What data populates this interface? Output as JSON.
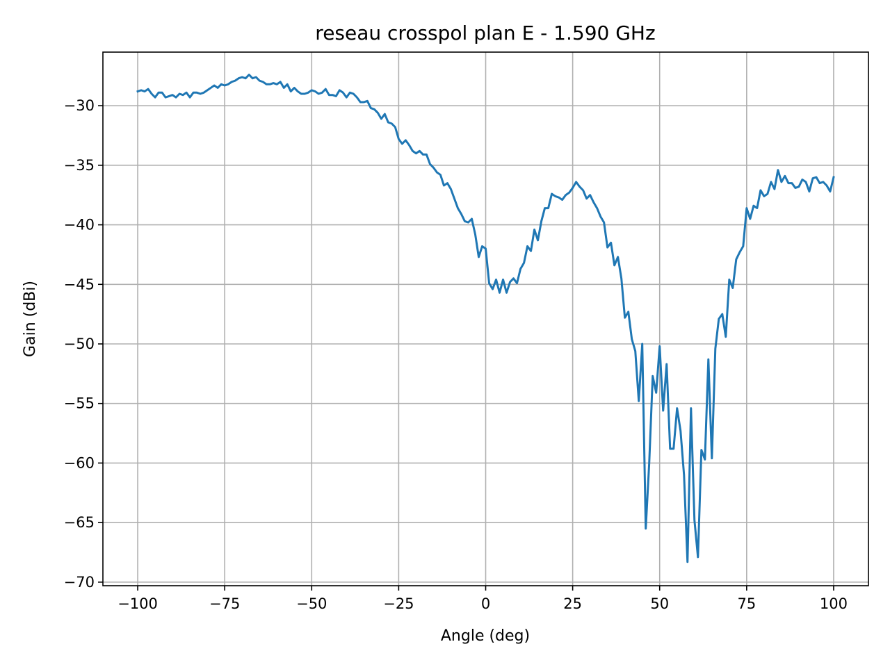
{
  "chart_data": {
    "type": "line",
    "title": "reseau crosspol plan E - 1.590 GHz",
    "xlabel": "Angle (deg)",
    "ylabel": "Gain (dBi)",
    "xlim": [
      -110,
      110
    ],
    "ylim": [
      -70.3,
      -25.5
    ],
    "xticks": [
      -100,
      -75,
      -50,
      -25,
      0,
      25,
      50,
      75,
      100
    ],
    "yticks": [
      -70,
      -65,
      -60,
      -55,
      -50,
      -45,
      -40,
      -35,
      -30
    ],
    "xtick_labels": [
      "−100",
      "−75",
      "−50",
      "−25",
      "0",
      "25",
      "50",
      "75",
      "100"
    ],
    "ytick_labels": [
      "−70",
      "−65",
      "−60",
      "−55",
      "−50",
      "−45",
      "−40",
      "−35",
      "−30"
    ],
    "grid": true,
    "line_color": "#1f77b4",
    "series": [
      {
        "x": [
          -100,
          -99,
          -98,
          -97,
          -96,
          -95,
          -94,
          -93,
          -92,
          -91,
          -90,
          -89,
          -88,
          -87,
          -86,
          -85,
          -84,
          -83,
          -82,
          -81,
          -80,
          -79,
          -78,
          -77,
          -76,
          -75,
          -74,
          -73,
          -72,
          -71,
          -70,
          -69,
          -68,
          -67,
          -66,
          -65,
          -64,
          -63,
          -62,
          -61,
          -60,
          -59,
          -58,
          -57,
          -56,
          -55,
          -54,
          -53,
          -52,
          -51,
          -50,
          -49,
          -48,
          -47,
          -46,
          -45,
          -44,
          -43,
          -42,
          -41,
          -40,
          -39,
          -38,
          -37,
          -36,
          -35,
          -34,
          -33,
          -32,
          -31,
          -30,
          -29,
          -28,
          -27,
          -26,
          -25,
          -24,
          -23,
          -22,
          -21,
          -20,
          -19,
          -18,
          -17,
          -16,
          -15,
          -14,
          -13,
          -12,
          -11,
          -10,
          -9,
          -8,
          -7,
          -6,
          -5,
          -4,
          -3,
          -2,
          -1,
          0,
          1,
          2,
          3,
          4,
          5,
          6,
          7,
          8,
          9,
          10,
          11,
          12,
          13,
          14,
          15,
          16,
          17,
          18,
          19,
          20,
          21,
          22,
          23,
          24,
          25,
          26,
          27,
          28,
          29,
          30,
          31,
          32,
          33,
          34,
          35,
          36,
          37,
          38,
          39,
          40,
          41,
          42,
          43,
          44,
          45,
          46,
          47,
          48,
          49,
          50,
          51,
          52,
          53,
          54,
          55,
          56,
          57,
          58,
          59,
          60,
          61,
          62,
          63,
          64,
          65,
          66,
          67,
          68,
          69,
          70,
          71,
          72,
          73,
          74,
          75,
          76,
          77,
          78,
          79,
          80,
          81,
          82,
          83,
          84,
          85,
          86,
          87,
          88,
          89,
          90,
          91,
          92,
          93,
          94,
          95,
          96,
          97,
          98,
          99,
          100
        ],
        "y": [
          -28.8,
          -28.7,
          -28.8,
          -28.6,
          -29.0,
          -29.3,
          -28.9,
          -28.9,
          -29.3,
          -29.2,
          -29.1,
          -29.3,
          -29.0,
          -29.1,
          -28.9,
          -29.3,
          -28.9,
          -28.9,
          -29.0,
          -28.9,
          -28.7,
          -28.5,
          -28.3,
          -28.5,
          -28.2,
          -28.3,
          -28.2,
          -28.0,
          -27.9,
          -27.7,
          -27.6,
          -27.7,
          -27.4,
          -27.7,
          -27.6,
          -27.9,
          -28.0,
          -28.2,
          -28.2,
          -28.1,
          -28.2,
          -28.0,
          -28.5,
          -28.2,
          -28.8,
          -28.5,
          -28.8,
          -29.0,
          -29.0,
          -28.9,
          -28.7,
          -28.8,
          -29.0,
          -28.9,
          -28.6,
          -29.1,
          -29.1,
          -29.2,
          -28.7,
          -28.9,
          -29.3,
          -28.9,
          -29.0,
          -29.3,
          -29.7,
          -29.7,
          -29.6,
          -30.2,
          -30.3,
          -30.6,
          -31.1,
          -30.7,
          -31.4,
          -31.5,
          -31.8,
          -32.8,
          -33.2,
          -32.9,
          -33.3,
          -33.8,
          -34.0,
          -33.8,
          -34.1,
          -34.1,
          -34.9,
          -35.2,
          -35.6,
          -35.8,
          -36.7,
          -36.5,
          -37.0,
          -37.8,
          -38.6,
          -39.1,
          -39.7,
          -39.8,
          -39.5,
          -40.8,
          -42.7,
          -41.8,
          -42.0,
          -44.9,
          -45.4,
          -44.6,
          -45.7,
          -44.6,
          -45.7,
          -44.8,
          -44.5,
          -44.9,
          -43.7,
          -43.2,
          -41.8,
          -42.2,
          -40.4,
          -41.3,
          -39.7,
          -38.6,
          -38.6,
          -37.4,
          -37.6,
          -37.7,
          -37.9,
          -37.5,
          -37.3,
          -36.9,
          -36.4,
          -36.8,
          -37.1,
          -37.8,
          -37.5,
          -38.1,
          -38.6,
          -39.3,
          -39.8,
          -41.9,
          -41.5,
          -43.4,
          -42.7,
          -44.5,
          -47.8,
          -47.3,
          -49.6,
          -50.6,
          -54.8,
          -50.0,
          -65.5,
          -60.0,
          -52.7,
          -54.1,
          -50.2,
          -55.6,
          -51.7,
          -58.8,
          -58.8,
          -55.4,
          -57.3,
          -61.0,
          -68.3,
          -55.4,
          -64.8,
          -67.9,
          -58.9,
          -59.7,
          -51.3,
          -59.6,
          -50.4,
          -47.9,
          -47.5,
          -49.4,
          -44.6,
          -45.3,
          -42.9,
          -42.3,
          -41.8,
          -38.6,
          -39.5,
          -38.4,
          -38.6,
          -37.1,
          -37.6,
          -37.4,
          -36.4,
          -37.0,
          -35.4,
          -36.4,
          -35.9,
          -36.5,
          -36.5,
          -36.9,
          -36.8,
          -36.2,
          -36.4,
          -37.2,
          -36.1,
          -36.0,
          -36.5,
          -36.4,
          -36.7,
          -37.2,
          -36.0
        ]
      }
    ]
  }
}
